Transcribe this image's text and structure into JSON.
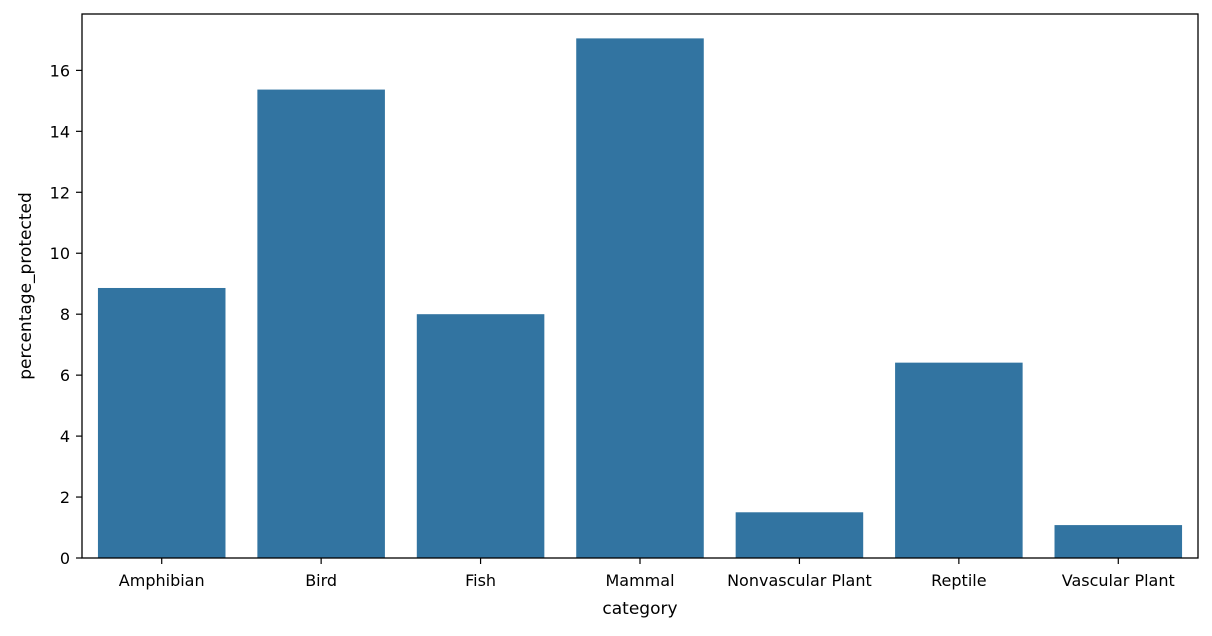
{
  "chart_data": {
    "type": "bar",
    "title": "",
    "xlabel": "category",
    "ylabel": "percentage_protected",
    "categories": [
      "Amphibian",
      "Bird",
      "Fish",
      "Mammal",
      "Nonvascular Plant",
      "Reptile",
      "Vascular Plant"
    ],
    "values": [
      8.86,
      15.37,
      8.0,
      17.05,
      1.5,
      6.41,
      1.08
    ],
    "ylim": [
      0,
      17.85
    ],
    "yticks": [
      0,
      2,
      4,
      6,
      8,
      10,
      12,
      14,
      16
    ],
    "grid": false,
    "legend": "none",
    "bar_color": "#3274a1",
    "axis_color": "#000000"
  }
}
